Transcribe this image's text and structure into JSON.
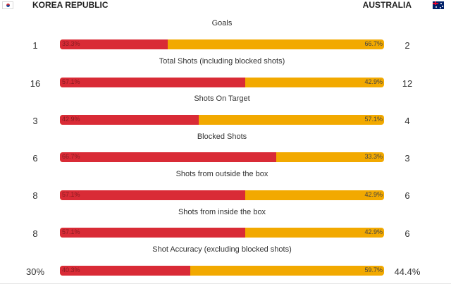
{
  "header": {
    "team_left": "KOREA REPUBLIC",
    "team_right": "AUSTRALIA",
    "flag_left": "south-korea-flag",
    "flag_right": "australia-flag"
  },
  "colors": {
    "left": "#d92b36",
    "right": "#f2a900"
  },
  "stats": [
    {
      "title": "Goals",
      "left": "1",
      "right": "2",
      "left_pct": "33.3%",
      "right_pct": "66.7%",
      "left_fraction": 0.333
    },
    {
      "title": "Total Shots (including blocked shots)",
      "left": "16",
      "right": "12",
      "left_pct": "57.1%",
      "right_pct": "42.9%",
      "left_fraction": 0.571
    },
    {
      "title": "Shots On Target",
      "left": "3",
      "right": "4",
      "left_pct": "42.9%",
      "right_pct": "57.1%",
      "left_fraction": 0.429
    },
    {
      "title": "Blocked Shots",
      "left": "6",
      "right": "3",
      "left_pct": "66.7%",
      "right_pct": "33.3%",
      "left_fraction": 0.667
    },
    {
      "title": "Shots from outside the box",
      "left": "8",
      "right": "6",
      "left_pct": "57.1%",
      "right_pct": "42.9%",
      "left_fraction": 0.571
    },
    {
      "title": "Shots from inside the box",
      "left": "8",
      "right": "6",
      "left_pct": "57.1%",
      "right_pct": "42.9%",
      "left_fraction": 0.571
    },
    {
      "title": "Shot Accuracy (excluding blocked shots)",
      "left": "30%",
      "right": "44.4%",
      "left_pct": "40.3%",
      "right_pct": "59.7%",
      "left_fraction": 0.403
    }
  ]
}
